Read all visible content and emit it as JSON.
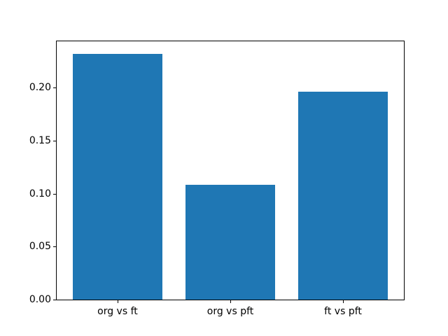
{
  "figure": {
    "background_color": "#ffffff",
    "title": ""
  },
  "chart_data": {
    "type": "bar",
    "categories": [
      "org vs ft",
      "org vs pft",
      "ft vs pft"
    ],
    "values": [
      0.232,
      0.108,
      0.196
    ],
    "x": [
      0,
      1,
      2
    ],
    "bar_width": 0.8,
    "bar_color": "#1f77b4",
    "title": "",
    "xlabel": "",
    "ylabel": "",
    "xlim": [
      -0.54,
      2.54
    ],
    "ylim": [
      0,
      0.2436
    ],
    "yticks": [
      0.0,
      0.05,
      0.1,
      0.15,
      0.2
    ],
    "ytick_format_decimals": 2,
    "grid": false,
    "legend": "none",
    "spine_color": "#000000",
    "tick_label_color": "#000000"
  }
}
